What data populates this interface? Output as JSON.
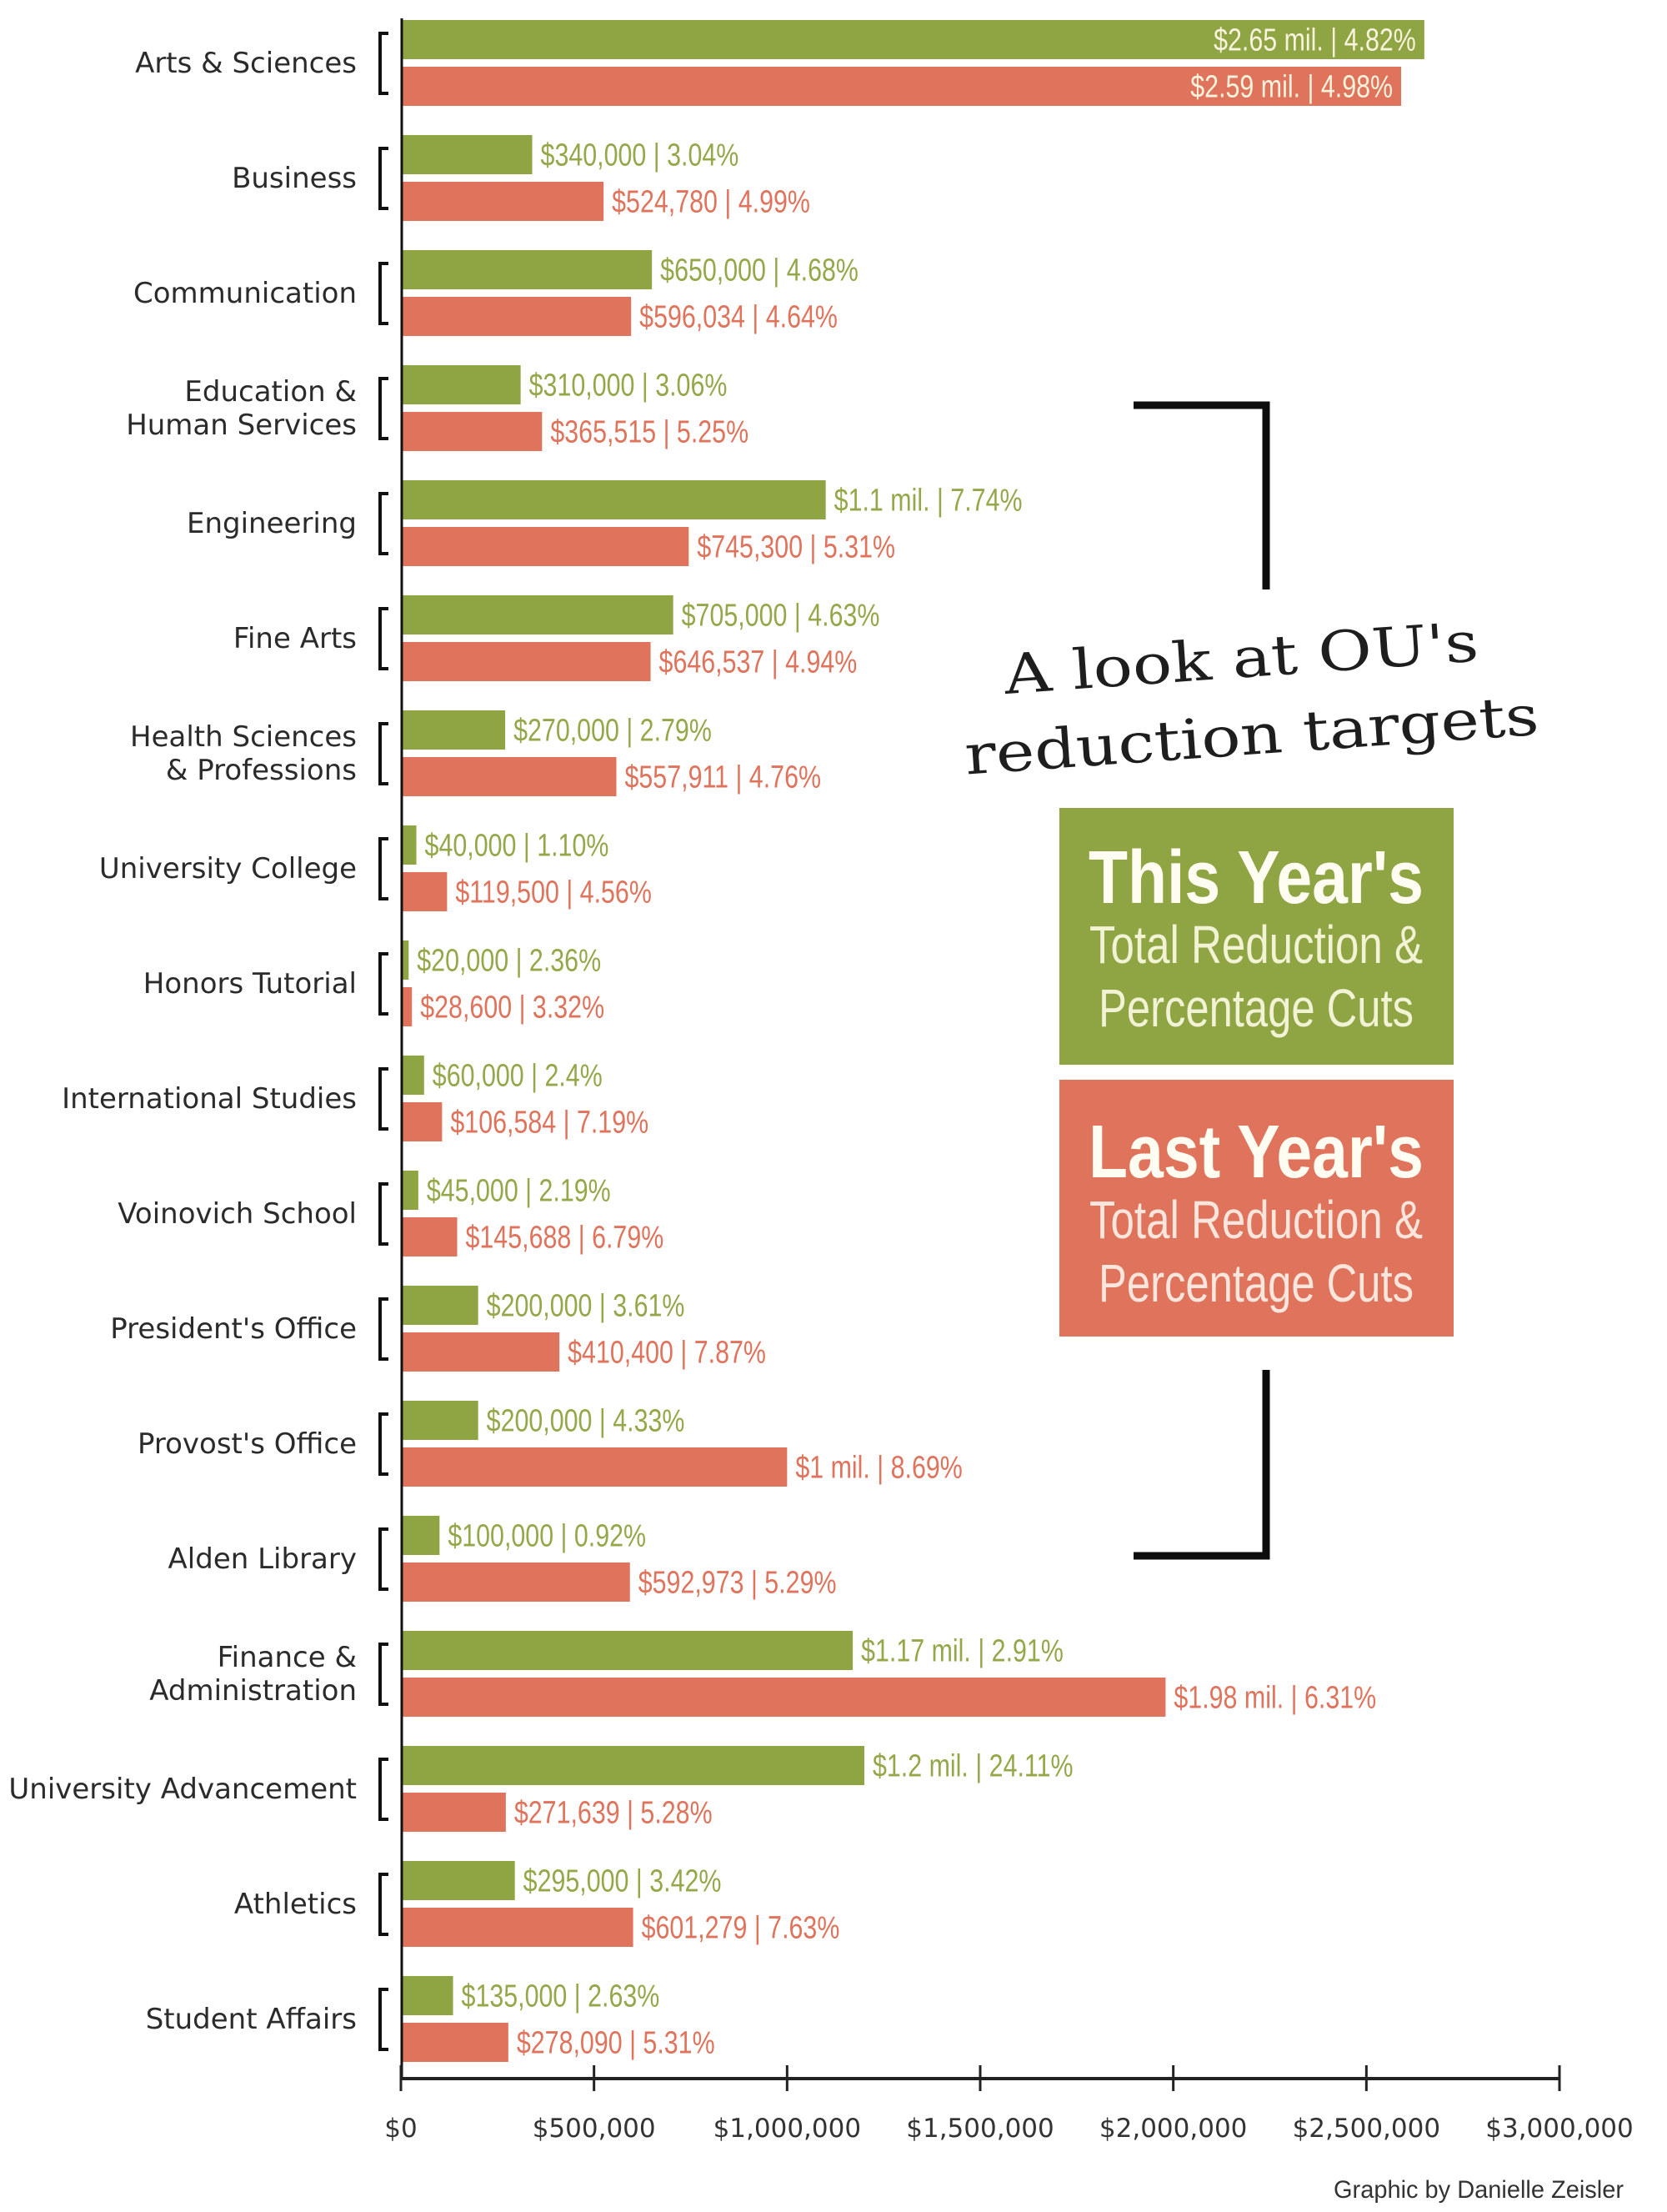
{
  "chart_data": {
    "type": "bar",
    "orientation": "horizontal",
    "title": "A look at OU's reduction targets",
    "title_lines": [
      "A look at OU's",
      "reduction targets"
    ],
    "xlabel": "",
    "ylabel": "",
    "xlim": [
      0,
      3000000
    ],
    "x_ticks": [
      0,
      500000,
      1000000,
      1500000,
      2000000,
      2500000,
      3000000
    ],
    "x_tick_labels": [
      "$0",
      "$500,000",
      "$1,000,000",
      "$1,500,000",
      "$2,000,000",
      "$2,500,000",
      "$3,000,000"
    ],
    "grid": false,
    "legend_position": "right",
    "categories": [
      [
        "Arts & Sciences"
      ],
      [
        "Business"
      ],
      [
        "Communication"
      ],
      [
        "Education &",
        "Human Services"
      ],
      [
        "Engineering"
      ],
      [
        "Fine Arts"
      ],
      [
        "Health Sciences",
        "& Professions"
      ],
      [
        "University College"
      ],
      [
        "Honors Tutorial"
      ],
      [
        "International Studies"
      ],
      [
        "Voinovich School"
      ],
      [
        "President's Office"
      ],
      [
        "Provost's Office"
      ],
      [
        "Alden Library"
      ],
      [
        "Finance &",
        "Administration"
      ],
      [
        "University Advancement"
      ],
      [
        "Athletics"
      ],
      [
        "Student Affairs"
      ]
    ],
    "series": [
      {
        "name": "This Year's Total Reduction & Percentage Cuts",
        "color": "#8fa443",
        "label_color": "#94a84a",
        "values": [
          2650000,
          340000,
          650000,
          310000,
          1100000,
          705000,
          270000,
          40000,
          20000,
          60000,
          45000,
          200000,
          200000,
          100000,
          1170000,
          1200000,
          295000,
          135000
        ],
        "percent_cuts": [
          4.82,
          3.04,
          4.68,
          3.06,
          7.74,
          4.63,
          2.79,
          1.1,
          2.36,
          2.4,
          2.19,
          3.61,
          4.33,
          0.92,
          2.91,
          24.11,
          3.42,
          2.63
        ],
        "data_labels": [
          "$2.65 mil. | 4.82%",
          "$340,000 | 3.04%",
          "$650,000 | 4.68%",
          "$310,000 | 3.06%",
          "$1.1 mil. | 7.74%",
          "$705,000 | 4.63%",
          "$270,000 | 2.79%",
          "$40,000 | 1.10%",
          "$20,000 | 2.36%",
          "$60,000 | 2.4%",
          "$45,000 | 2.19%",
          "$200,000 | 3.61%",
          "$200,000 | 4.33%",
          "$100,000 | 0.92%",
          "$1.17 mil. | 2.91%",
          "$1.2 mil. | 24.11%",
          "$295,000 | 3.42%",
          "$135,000 | 2.63%"
        ]
      },
      {
        "name": "Last Year's Total Reduction & Percentage Cuts",
        "color": "#e0735c",
        "label_color": "#e0735c",
        "values": [
          2590000,
          524780,
          596034,
          365515,
          745300,
          646537,
          557911,
          119500,
          28600,
          106584,
          145688,
          410400,
          1000000,
          592973,
          1980000,
          271639,
          601279,
          278090
        ],
        "percent_cuts": [
          4.98,
          4.99,
          4.64,
          5.25,
          5.31,
          4.94,
          4.76,
          4.56,
          3.32,
          7.19,
          6.79,
          7.87,
          8.69,
          5.29,
          6.31,
          5.28,
          7.63,
          5.31
        ],
        "data_labels": [
          "$2.59 mil. | 4.98%",
          "$524,780 | 4.99%",
          "$596,034 | 4.64%",
          "$365,515 | 5.25%",
          "$745,300 | 5.31%",
          "$646,537 | 4.94%",
          "$557,911 | 4.76%",
          "$119,500 | 4.56%",
          "$28,600 | 3.32%",
          "$106,584 | 7.19%",
          "$145,688 | 6.79%",
          "$410,400 | 7.87%",
          "$1 mil. | 8.69%",
          "$592,973 | 5.29%",
          "$1.98 mil. | 6.31%",
          "$271,639 | 5.28%",
          "$601,279 | 7.63%",
          "$278,090 | 5.31%"
        ]
      }
    ],
    "inside_label_color": "#f7f3dc",
    "annotations": [
      "Graphic by Danielle Zeisler"
    ]
  },
  "legend": {
    "this_year": {
      "heading": "This Year's",
      "line1": "Total Reduction &",
      "line2": "Percentage Cuts",
      "color": "#8fa443",
      "text_color": "#f1f3d4"
    },
    "last_year": {
      "heading": "Last Year's",
      "line1": "Total Reduction &",
      "line2": "Percentage Cuts",
      "color": "#e0735c",
      "text_color": "#fbe6dd"
    }
  },
  "credit": "Graphic by Danielle Zeisler"
}
